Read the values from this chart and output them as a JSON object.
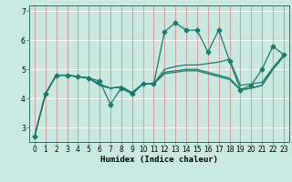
{
  "xlabel": "Humidex (Indice chaleur)",
  "bg_color": "#c8e8e0",
  "hgrid_color": "#ffffff",
  "vgrid_color": "#d4a0a0",
  "line_color": "#1a7a6e",
  "xlim": [
    -0.5,
    23.5
  ],
  "ylim": [
    2.5,
    7.2
  ],
  "yticks": [
    3,
    4,
    5,
    6,
    7
  ],
  "xticks": [
    0,
    1,
    2,
    3,
    4,
    5,
    6,
    7,
    8,
    9,
    10,
    11,
    12,
    13,
    14,
    15,
    16,
    17,
    18,
    19,
    20,
    21,
    22,
    23
  ],
  "series": [
    [
      2.7,
      4.15,
      4.8,
      4.8,
      4.75,
      4.7,
      4.6,
      3.8,
      4.35,
      4.15,
      4.5,
      4.5,
      6.3,
      6.6,
      6.35,
      6.35,
      5.6,
      6.35,
      5.3,
      4.3,
      4.45,
      5.0,
      5.8,
      5.5
    ],
    [
      2.7,
      4.15,
      4.8,
      4.8,
      4.75,
      4.7,
      4.45,
      4.35,
      4.4,
      4.2,
      4.5,
      4.5,
      5.0,
      5.1,
      5.15,
      5.15,
      5.2,
      5.25,
      5.35,
      4.45,
      4.5,
      4.55,
      5.05,
      5.5
    ],
    [
      2.7,
      4.15,
      4.8,
      4.8,
      4.75,
      4.7,
      4.45,
      4.35,
      4.4,
      4.2,
      4.5,
      4.5,
      4.9,
      4.95,
      5.0,
      5.0,
      4.9,
      4.8,
      4.7,
      4.3,
      4.35,
      4.45,
      5.0,
      5.45
    ],
    [
      2.7,
      4.15,
      4.8,
      4.8,
      4.75,
      4.7,
      4.5,
      4.35,
      4.4,
      4.15,
      4.5,
      4.5,
      4.85,
      4.9,
      4.95,
      4.95,
      4.85,
      4.75,
      4.65,
      4.3,
      4.35,
      4.45,
      5.0,
      5.45
    ]
  ],
  "marker": "D",
  "marker_size": 2.5,
  "linewidth": 0.9,
  "tick_fontsize": 5.5,
  "xlabel_fontsize": 6.5
}
